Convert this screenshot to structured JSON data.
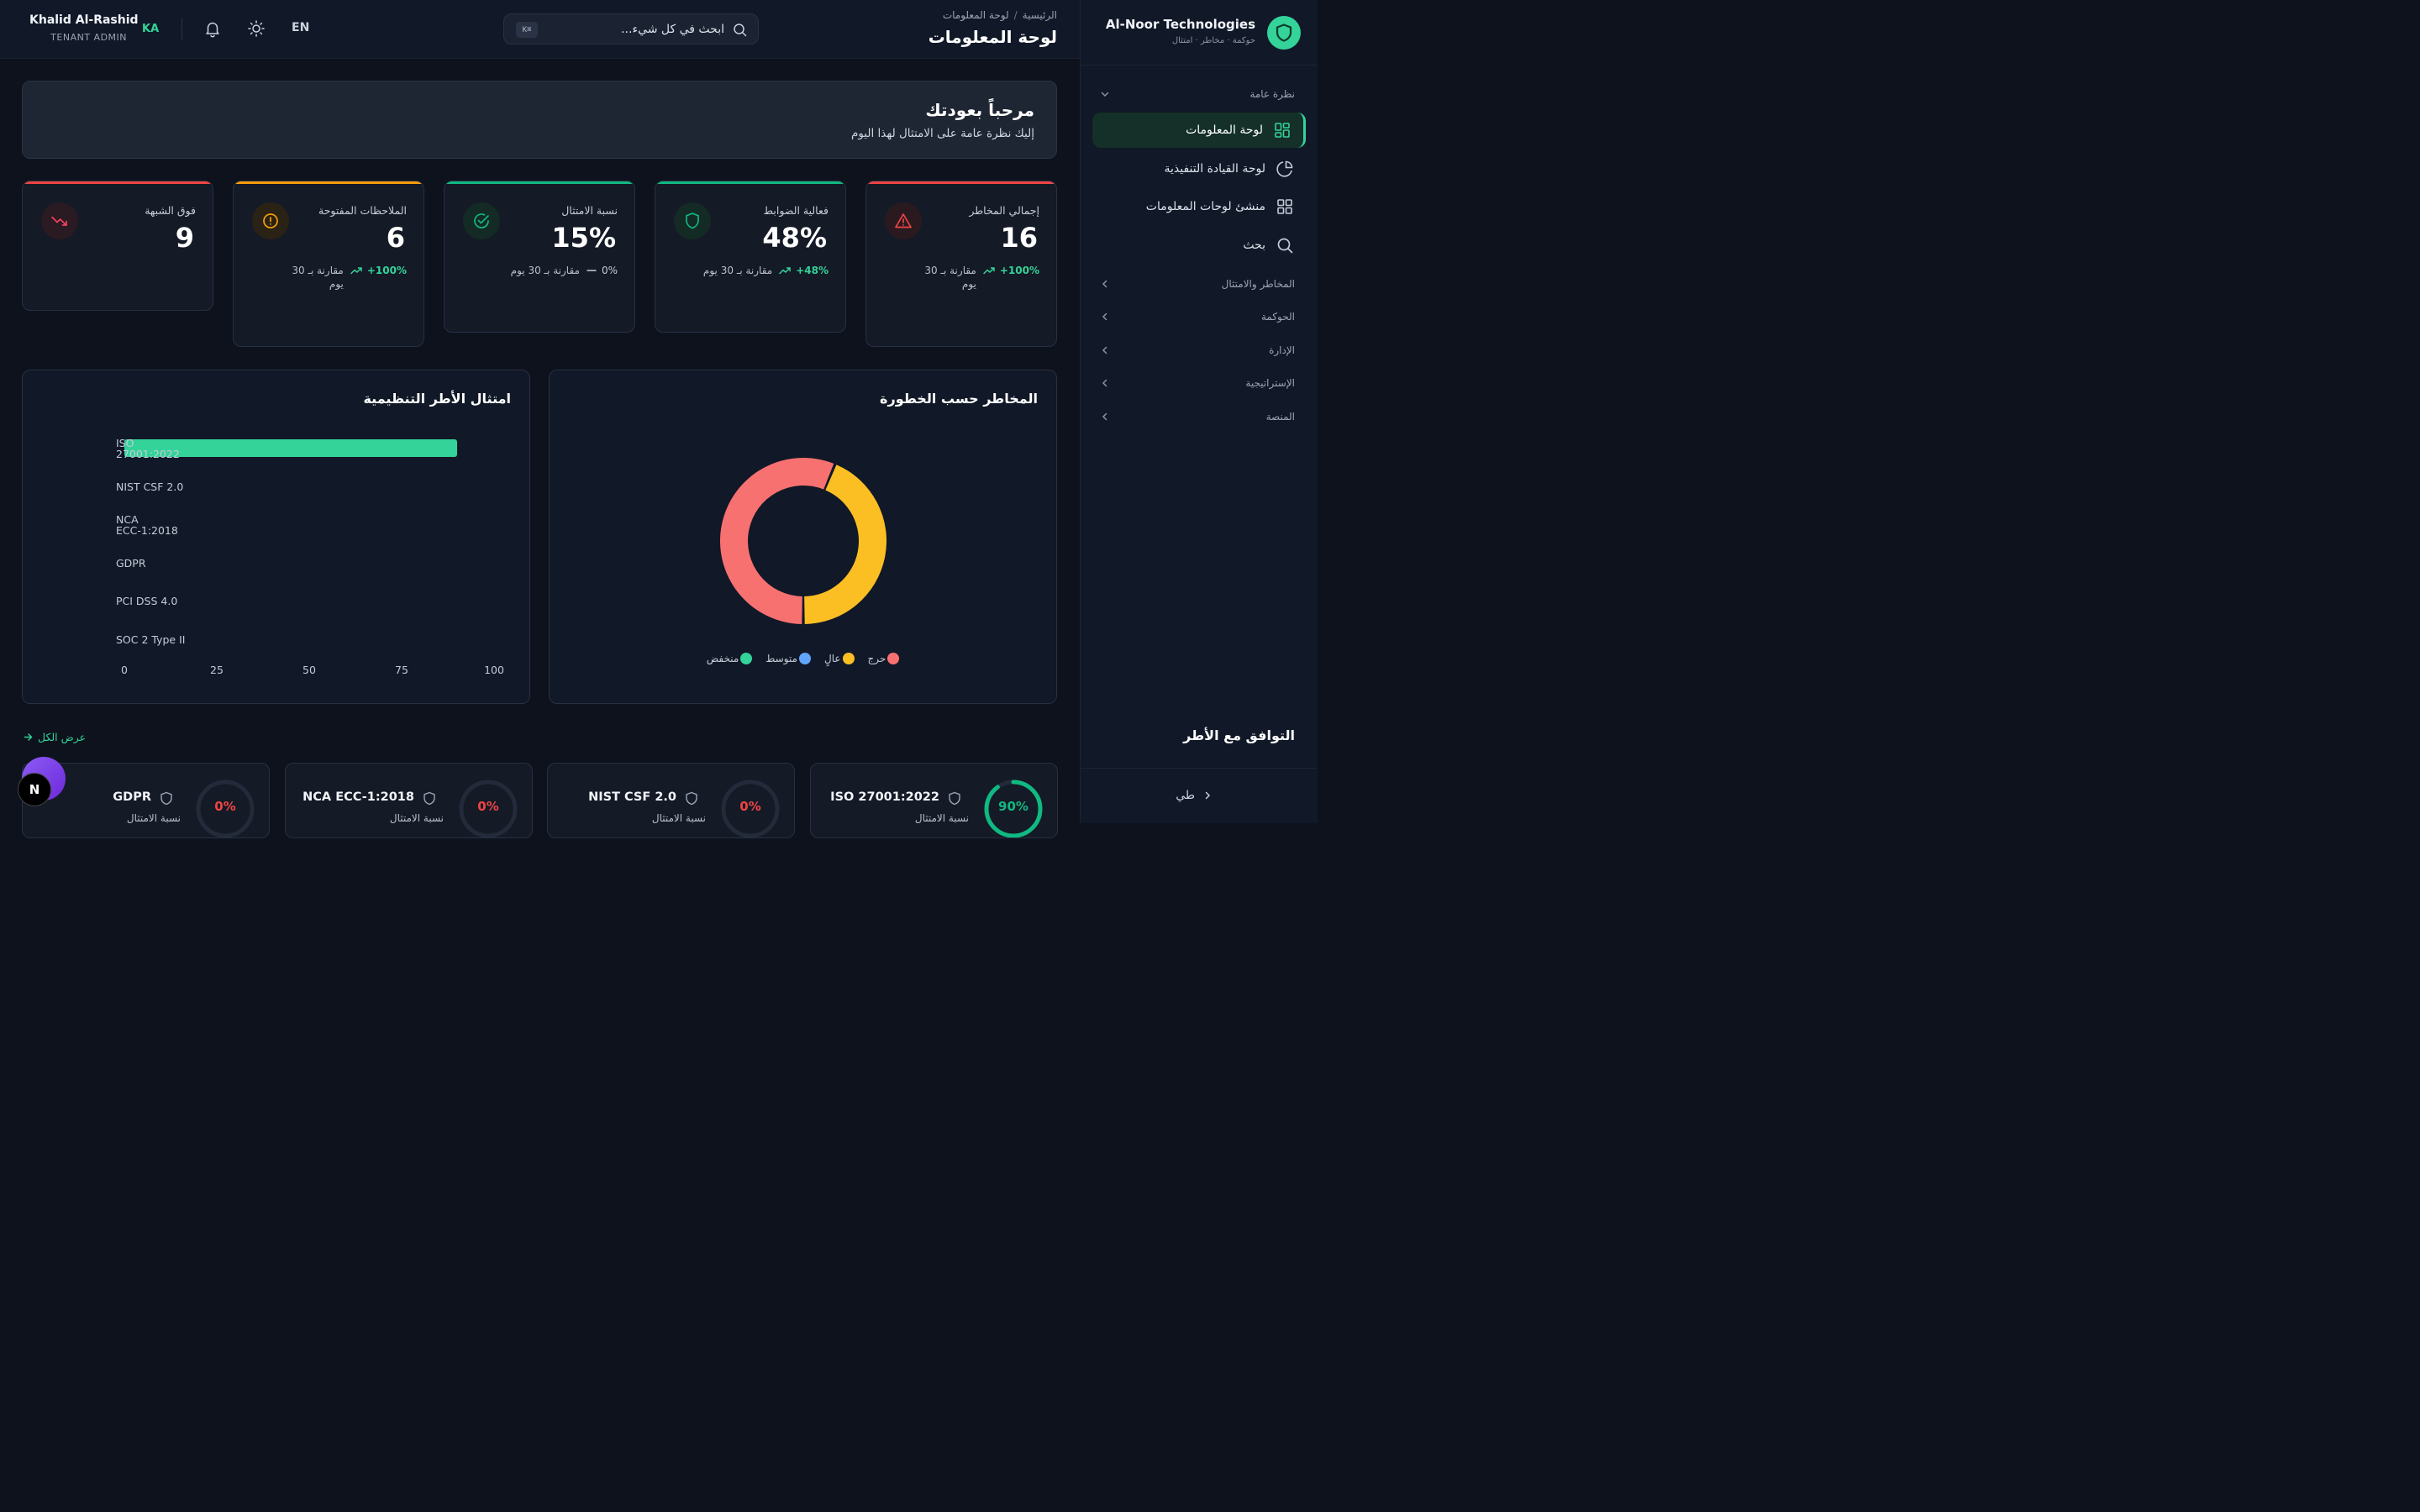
{
  "brand": {
    "name": "Al-Noor Technologies",
    "subtitle": "حوكمة · مخاطر · امتثال"
  },
  "sidebar": {
    "groups": [
      {
        "label": "نظرة عامة"
      },
      {
        "label": "المخاطر والامتثال"
      },
      {
        "label": "الحوكمة"
      },
      {
        "label": "الإدارة"
      },
      {
        "label": "الإستراتيجية"
      },
      {
        "label": "المنصة"
      }
    ],
    "items": [
      {
        "label": "لوحة المعلومات",
        "icon": "dashboard-grid-icon"
      },
      {
        "label": "لوحة القيادة التنفيذية",
        "icon": "pie-chart-icon"
      },
      {
        "label": "منشئ لوحات المعلومات",
        "icon": "grid-icon"
      },
      {
        "label": "بحث",
        "icon": "search-icon"
      }
    ],
    "user_label": "طي"
  },
  "header": {
    "breadcrumb_home": "الرئيسية",
    "breadcrumb_sep": "/",
    "breadcrumb_current": "لوحة المعلومات",
    "title": "لوحة المعلومات",
    "search_placeholder": "ابحث في كل شيء...",
    "search_shortcut": "K⌘",
    "lang": "EN",
    "user_initials": "KA",
    "user_name": "Khalid Al-Rashid",
    "user_role": "TENANT ADMIN"
  },
  "welcome": {
    "title": "مرحباً بعودتك",
    "subtitle": "إليك نظرة عامة على الامتثال لهذا اليوم"
  },
  "kpis": [
    {
      "label": "إجمالي المخاطر",
      "value": "16",
      "delta": "+100%",
      "compare": "مقارنة بـ 30\nيوم",
      "color": "#ef4444",
      "icon": "alert-triangle-icon"
    },
    {
      "label": "فعالية الضوابط",
      "value": "48%",
      "delta": "+48%",
      "compare": "مقارنة بـ 30 يوم",
      "color": "#10b981",
      "icon": "shield-icon"
    },
    {
      "label": "نسبة الامتثال",
      "value": "15%",
      "delta": "0%",
      "compare": "مقارنة بـ 30 يوم",
      "color": "#10b981",
      "icon": "check-circle-icon"
    },
    {
      "label": "الملاحظات المفتوحة",
      "value": "6",
      "delta": "+100%",
      "compare": "مقارنة بـ 30\nيوم",
      "color": "#f59e0b",
      "icon": "alert-circle-icon"
    },
    {
      "label": "فوق الشبهة",
      "value": "9",
      "color": "#ef4444",
      "icon": "trending-down-icon"
    }
  ],
  "panels": {
    "risk_title": "المخاطر حسب الخطورة",
    "frameworks_title": "امتثال الأطر التنظيمية"
  },
  "chart_data": [
    {
      "type": "pie",
      "title": "المخاطر حسب الخطورة",
      "categories": [
        "حرج",
        "عالٍ",
        "متوسط",
        "منخفض"
      ],
      "values": [
        9,
        7,
        0,
        0
      ],
      "colors": [
        "#f87171",
        "#fbbf24",
        "#60a5fa",
        "#34d399"
      ],
      "legend": "bottom"
    },
    {
      "type": "bar",
      "orientation": "horizontal",
      "title": "امتثال الأطر التنظيمية",
      "categories": [
        "ISO\n27001:2022",
        "NIST CSF 2.0",
        "NCA\nECC-1:2018",
        "GDPR",
        "PCI DSS 4.0",
        "SOC 2 Type II"
      ],
      "values": [
        90,
        0,
        0,
        0,
        0,
        0
      ],
      "xlim": [
        0,
        100
      ],
      "xticks": [
        "0",
        "25",
        "50",
        "75",
        "100"
      ],
      "color": "#34d399"
    }
  ],
  "framework_section": {
    "title": "التوافق مع الأطر",
    "view_all": "عرض الكل",
    "cards": [
      {
        "name": "ISO 27001:2022",
        "pct": "90%",
        "value": 90,
        "sub": "نسبة الامتثال",
        "color": "#10b981"
      },
      {
        "name": "NIST CSF 2.0",
        "pct": "0%",
        "value": 0,
        "sub": "نسبة الامتثال",
        "color": "#ef4444"
      },
      {
        "name": "NCA ECC-1:2018",
        "pct": "0%",
        "value": 0,
        "sub": "نسبة الامتثال",
        "color": "#ef4444"
      },
      {
        "name": "GDPR",
        "pct": "0%",
        "value": 0,
        "sub": "نسبة الامتثال",
        "color": "#ef4444"
      }
    ]
  },
  "badge": "N"
}
